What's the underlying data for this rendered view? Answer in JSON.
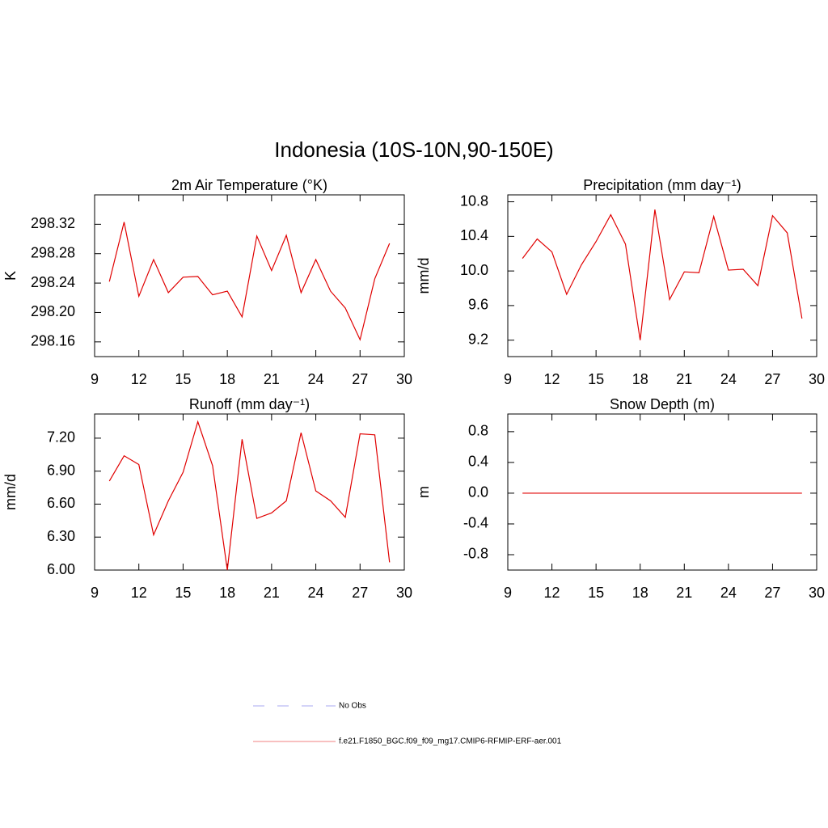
{
  "title": "Indonesia (10S-10N,90-150E)",
  "legend": [
    {
      "name": "No Obs",
      "color": "#a8a8f0",
      "dash": true
    },
    {
      "name": "f.e21.F1850_BGC.f09_f09_mg17.CMIP6-RFMIP-ERF-aer.001",
      "color": "#f08080",
      "dash": false
    }
  ],
  "chart_data": [
    {
      "type": "line",
      "title": "2m Air Temperature (°K)",
      "y_label": "K",
      "x": [
        10,
        11,
        12,
        13,
        14,
        15,
        16,
        17,
        18,
        19,
        20,
        21,
        22,
        23,
        24,
        25,
        26,
        27,
        28,
        29
      ],
      "series": [
        {
          "color": "#e00000",
          "values": [
            298.242,
            298.323,
            298.222,
            298.272,
            298.227,
            298.248,
            298.249,
            298.224,
            298.229,
            298.194,
            298.304,
            298.257,
            298.305,
            298.227,
            298.272,
            298.229,
            298.206,
            298.163,
            298.246,
            298.294
          ]
        }
      ],
      "xlim": [
        9,
        30
      ],
      "xticks": [
        9,
        12,
        15,
        18,
        21,
        24,
        27,
        30
      ],
      "ylim": [
        298.14,
        298.36
      ],
      "yticks": [
        298.16,
        {
          "value": 298.2,
          "label": "298.20"
        },
        298.24,
        298.28,
        298.32
      ]
    },
    {
      "type": "line",
      "title": "Precipitation (mm day⁻¹)",
      "y_label": "mm/d",
      "x": [
        10,
        11,
        12,
        13,
        14,
        15,
        16,
        17,
        18,
        19,
        20,
        21,
        22,
        23,
        24,
        25,
        26,
        27,
        28,
        29
      ],
      "series": [
        {
          "color": "#e00000",
          "values": [
            10.145,
            10.37,
            10.22,
            9.73,
            10.07,
            10.34,
            10.65,
            10.31,
            9.2,
            10.71,
            9.67,
            9.99,
            9.98,
            10.63,
            10.01,
            10.02,
            9.83,
            10.64,
            10.44,
            9.45
          ]
        }
      ],
      "xlim": [
        9,
        30
      ],
      "xticks": [
        9,
        12,
        15,
        18,
        21,
        24,
        27,
        30
      ],
      "ylim": [
        9.01,
        10.88
      ],
      "yticks": [
        9.2,
        9.6,
        {
          "value": 10,
          "label": "10.0"
        },
        10.4,
        10.8
      ]
    },
    {
      "type": "line",
      "title": "Runoff (mm day⁻¹)",
      "y_label": "mm/d",
      "x": [
        10,
        11,
        12,
        13,
        14,
        15,
        16,
        17,
        18,
        19,
        20,
        21,
        22,
        23,
        24,
        25,
        26,
        27,
        28,
        29
      ],
      "series": [
        {
          "color": "#e00000",
          "values": [
            6.81,
            7.04,
            6.96,
            6.32,
            6.63,
            6.89,
            7.35,
            6.95,
            6.0,
            7.19,
            6.47,
            6.52,
            6.63,
            7.25,
            6.72,
            6.63,
            6.48,
            7.24,
            7.23,
            6.07
          ]
        }
      ],
      "xlim": [
        9,
        30
      ],
      "xticks": [
        9,
        12,
        15,
        18,
        21,
        24,
        27,
        30
      ],
      "ylim": [
        6.0,
        7.42
      ],
      "yticks": [
        {
          "value": 6,
          "label": "6.00"
        },
        {
          "value": 6.3,
          "label": "6.30"
        },
        {
          "value": 6.6,
          "label": "6.60"
        },
        {
          "value": 6.9,
          "label": "6.90"
        },
        {
          "value": 7.2,
          "label": "7.20"
        }
      ]
    },
    {
      "type": "line",
      "title": "Snow Depth (m)",
      "y_label": "m",
      "x": [
        10,
        11,
        12,
        13,
        14,
        15,
        16,
        17,
        18,
        19,
        20,
        21,
        22,
        23,
        24,
        25,
        26,
        27,
        28,
        29
      ],
      "series": [
        {
          "color": "#e00000",
          "values": [
            0,
            0,
            0,
            0,
            0,
            0,
            0,
            0,
            0,
            0,
            0,
            0,
            0,
            0,
            0,
            0,
            0,
            0,
            0,
            0
          ]
        }
      ],
      "xlim": [
        9,
        30
      ],
      "xticks": [
        9,
        12,
        15,
        18,
        21,
        24,
        27,
        30
      ],
      "ylim": [
        -1.0,
        1.03
      ],
      "yticks": [
        {
          "value": -0.8,
          "label": "-0.8"
        },
        {
          "value": -0.4,
          "label": "-0.4"
        },
        {
          "value": 0,
          "label": "0.0"
        },
        0.4,
        0.8
      ]
    }
  ]
}
